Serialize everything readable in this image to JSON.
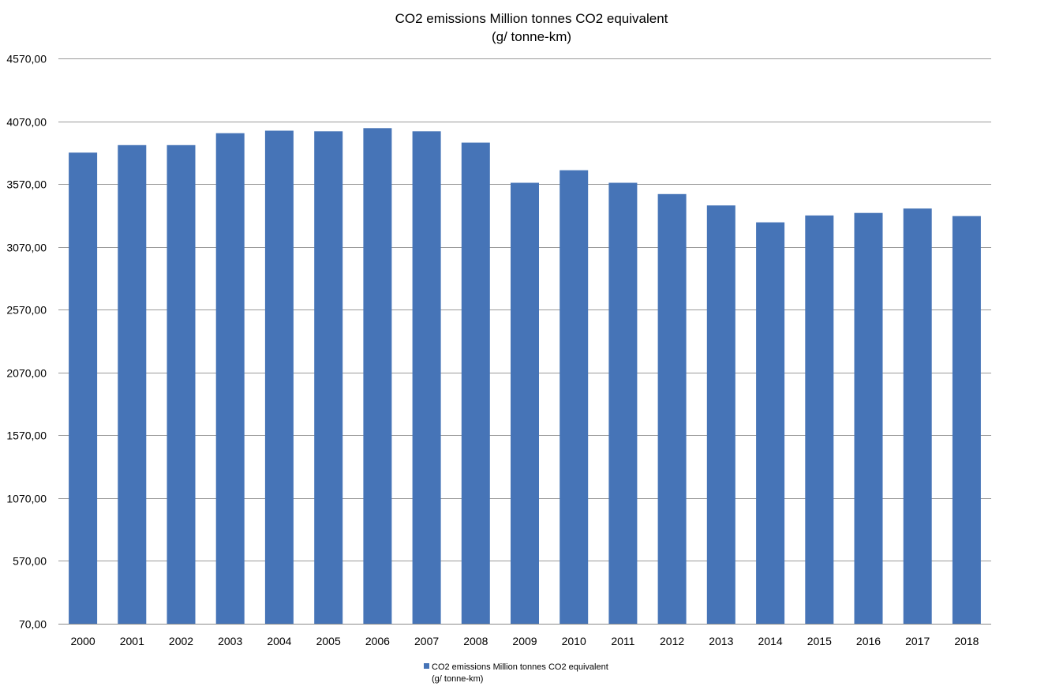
{
  "chart_data": {
    "type": "bar",
    "title": "CO2 emissions Million tonnes CO2 equivalent",
    "subtitle": "(g/ tonne-km)",
    "ylim": [
      70,
      4570
    ],
    "yticks": [
      70,
      570,
      1070,
      1570,
      2070,
      2570,
      3070,
      3570,
      4070,
      4570
    ],
    "ytick_labels": [
      "70,00",
      "570,00",
      "1070,00",
      "1570,00",
      "2070,00",
      "2570,00",
      "3070,00",
      "3570,00",
      "4070,00",
      "4570,00"
    ],
    "categories": [
      "2000",
      "2001",
      "2002",
      "2003",
      "2004",
      "2005",
      "2006",
      "2007",
      "2008",
      "2009",
      "2010",
      "2011",
      "2012",
      "2013",
      "2014",
      "2015",
      "2016",
      "2017",
      "2018"
    ],
    "series": [
      {
        "name": "CO2 emissions Million tonnes CO2 equivalent (g/ tonne-km)",
        "color": "#4674b7",
        "values": [
          3820,
          3880,
          3880,
          3975,
          3995,
          3990,
          4015,
          3990,
          3900,
          3580,
          3680,
          3580,
          3490,
          3400,
          3265,
          3320,
          3340,
          3375,
          3315
        ]
      }
    ],
    "grid": true,
    "legend_position": "bottom"
  },
  "legend": {
    "line1": "CO2 emissions Million tonnes CO2 equivalent",
    "line2": "(g/ tonne-km)"
  }
}
